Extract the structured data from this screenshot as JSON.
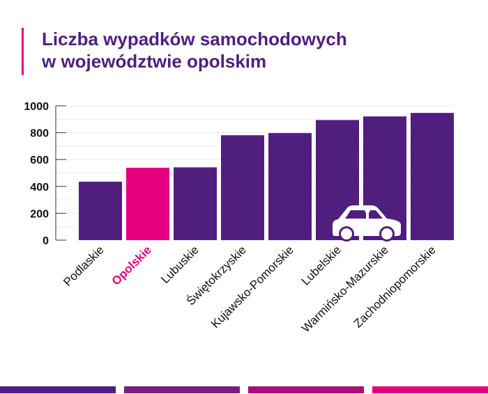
{
  "chart_data": {
    "type": "bar",
    "title_lines": [
      "Liczba wypadków samochodowych",
      "w województwie opolskim"
    ],
    "categories": [
      "Podlaskie",
      "Opolskie",
      "Lubuskie",
      "Świętokrzyskie",
      "Kujawsko-Pomorskie",
      "Lubelskie",
      "Warmińsko-Mazurskie",
      "Zachodniopomorskie"
    ],
    "values": [
      435,
      539,
      542,
      781,
      797,
      894,
      921,
      947
    ],
    "highlight": "Opolskie",
    "ylim": [
      0,
      1000
    ],
    "yticks": [
      0,
      200,
      400,
      600,
      800,
      1000
    ],
    "grid": true,
    "colors": {
      "bar": "#4f1e7f",
      "highlight": "#e6007e",
      "title": "#4f1e7f"
    },
    "icon": "car-icon"
  },
  "footer_colors": [
    "#4f1e7f",
    "#7b1c80",
    "#a90e7c",
    "#e6007e"
  ]
}
